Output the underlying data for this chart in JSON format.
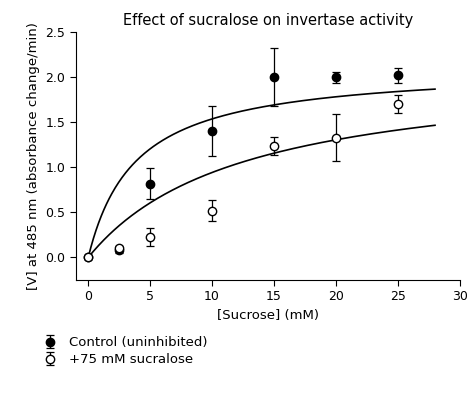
{
  "title": "Effect of sucralose on invertase activity",
  "xlabel": "[Sucrose] (mM)",
  "ylabel": "[V] at 485 nm (absorbance change/min)",
  "xlim": [
    -1,
    30
  ],
  "ylim": [
    -0.25,
    2.5
  ],
  "xticks": [
    0,
    5,
    10,
    15,
    20,
    25,
    30
  ],
  "yticks": [
    0.0,
    0.5,
    1.0,
    1.5,
    2.0,
    2.5
  ],
  "control_x": [
    0,
    2.5,
    5,
    10,
    15,
    20,
    25
  ],
  "control_y": [
    0.0,
    0.08,
    0.82,
    1.4,
    2.0,
    2.0,
    2.02
  ],
  "control_yerr": [
    0.02,
    0.03,
    0.17,
    0.28,
    0.32,
    0.06,
    0.08
  ],
  "sucralose_x": [
    0,
    2.5,
    5,
    10,
    15,
    20,
    25
  ],
  "sucralose_y": [
    0.0,
    0.1,
    0.23,
    0.52,
    1.24,
    1.33,
    1.7
  ],
  "sucralose_yerr": [
    0.02,
    0.03,
    0.1,
    0.12,
    0.1,
    0.26,
    0.1
  ],
  "Vmax_control": 2.12,
  "Km_control": 3.8,
  "Vmax_sucralose": 2.12,
  "Km_sucralose": 12.5,
  "background_color": "#ffffff",
  "line_color": "#000000",
  "legend_labels": [
    "Control (uninhibited)",
    "+75 mM sucralose"
  ],
  "title_fontsize": 10.5,
  "label_fontsize": 9.5,
  "tick_fontsize": 9,
  "legend_fontsize": 9.5
}
